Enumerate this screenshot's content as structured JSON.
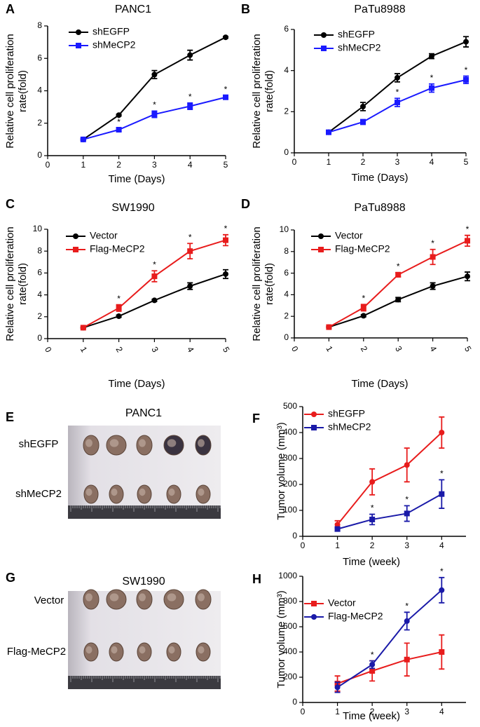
{
  "chart_data": [
    {
      "type": "line",
      "panel": "A",
      "title": "PANC1",
      "x_label": "Time (Days)",
      "y_label": [
        "Relative cell proliferation",
        "rate(fold)"
      ],
      "x": [
        1,
        2,
        3,
        4,
        5
      ],
      "xlim": [
        0,
        5
      ],
      "xticks": [
        0,
        1,
        2,
        3,
        4,
        5
      ],
      "ylim": [
        0,
        8
      ],
      "yticks": [
        0,
        2,
        4,
        6,
        8
      ],
      "legend": "upper left",
      "series": [
        {
          "name": "shEGFP",
          "color": "#000000",
          "marker": "circle",
          "values": [
            1,
            2.5,
            5.0,
            6.2,
            7.3
          ],
          "errors": [
            0.05,
            0.05,
            0.25,
            0.3,
            0.05
          ]
        },
        {
          "name": "shMeCP2",
          "color": "#1a1aff",
          "marker": "square",
          "values": [
            1,
            1.6,
            2.55,
            3.05,
            3.6
          ],
          "errors": [
            0.05,
            0.1,
            0.2,
            0.2,
            0.1
          ],
          "significance": [
            null,
            "*",
            "*",
            "*",
            "*"
          ]
        }
      ]
    },
    {
      "type": "line",
      "panel": "B",
      "title": "PaTu8988",
      "x_label": "Time (Days)",
      "y_label": [
        "Relative cell proliferation",
        "rate(fold)"
      ],
      "x": [
        1,
        2,
        3,
        4,
        5
      ],
      "xlim": [
        0,
        5
      ],
      "xticks": [
        0,
        1,
        2,
        3,
        4,
        5
      ],
      "ylim": [
        0,
        6
      ],
      "yticks": [
        0,
        2,
        4,
        6
      ],
      "legend": "upper left",
      "series": [
        {
          "name": "shEGFP",
          "color": "#000000",
          "marker": "circle",
          "values": [
            1,
            2.25,
            3.65,
            4.7,
            5.4
          ],
          "errors": [
            0.05,
            0.2,
            0.2,
            0.12,
            0.25
          ]
        },
        {
          "name": "shMeCP2",
          "color": "#1a1aff",
          "marker": "square",
          "values": [
            1,
            1.5,
            2.45,
            3.15,
            3.55
          ],
          "errors": [
            0.05,
            0.12,
            0.2,
            0.2,
            0.18
          ],
          "significance": [
            null,
            null,
            "*",
            "*",
            "*"
          ]
        }
      ]
    },
    {
      "type": "line",
      "panel": "C",
      "title": "SW1990",
      "x_label": "Time (Days)",
      "y_label": [
        "Relative cell proliferation",
        "rate(fold)"
      ],
      "x": [
        1,
        2,
        3,
        4,
        5
      ],
      "xlim": [
        0,
        5
      ],
      "xticks": [
        0,
        1,
        2,
        3,
        4,
        5
      ],
      "ylim": [
        0,
        10
      ],
      "yticks": [
        0,
        2,
        4,
        6,
        8,
        10
      ],
      "legend": "upper left",
      "series": [
        {
          "name": "Vector",
          "color": "#000000",
          "marker": "circle",
          "values": [
            1,
            2.05,
            3.5,
            4.8,
            5.9
          ],
          "errors": [
            0.05,
            0.1,
            0.1,
            0.3,
            0.4
          ]
        },
        {
          "name": "Flag-MeCP2",
          "color": "#e81c1c",
          "marker": "square",
          "values": [
            1,
            2.8,
            5.7,
            8.0,
            9.0
          ],
          "errors": [
            0.05,
            0.3,
            0.5,
            0.7,
            0.5
          ],
          "significance": [
            null,
            "*",
            "*",
            "*",
            "*"
          ]
        }
      ]
    },
    {
      "type": "line",
      "panel": "D",
      "title": "PaTu8988",
      "x_label": "Time (Days)",
      "y_label": [
        "Relative cell proliferation",
        "rate(fold)"
      ],
      "x": [
        1,
        2,
        3,
        4,
        5
      ],
      "xlim": [
        0,
        5
      ],
      "xticks": [
        0,
        1,
        2,
        3,
        4,
        5
      ],
      "ylim": [
        0,
        10
      ],
      "yticks": [
        0,
        2,
        4,
        6,
        8,
        10
      ],
      "legend": "upper left",
      "series": [
        {
          "name": "Vector",
          "color": "#000000",
          "marker": "circle",
          "values": [
            1,
            2.05,
            3.55,
            4.8,
            5.7
          ],
          "errors": [
            0.05,
            0.1,
            0.2,
            0.3,
            0.4
          ]
        },
        {
          "name": "Flag-MeCP2",
          "color": "#e81c1c",
          "marker": "square",
          "values": [
            1,
            2.8,
            5.85,
            7.5,
            9.0
          ],
          "errors": [
            0.05,
            0.3,
            0.2,
            0.7,
            0.5
          ],
          "significance": [
            null,
            "*",
            "*",
            "*",
            "*"
          ]
        }
      ]
    },
    {
      "type": "line",
      "panel": "F",
      "x_label": "Time (week)",
      "y_label": [
        "Tumor volume (mm³)"
      ],
      "x": [
        1,
        2,
        3,
        4
      ],
      "xlim": [
        0,
        4.7
      ],
      "xticks": [
        0,
        1,
        2,
        3,
        4
      ],
      "ylim": [
        0,
        500
      ],
      "yticks": [
        0,
        100,
        200,
        300,
        400,
        500
      ],
      "legend": "upper left",
      "series": [
        {
          "name": "shEGFP",
          "color": "#e81c1c",
          "marker": "circle",
          "values": [
            45,
            210,
            275,
            400
          ],
          "errors": [
            15,
            50,
            65,
            60
          ]
        },
        {
          "name": "shMeCP2",
          "color": "#1a1aa8",
          "marker": "square",
          "values": [
            28,
            65,
            88,
            163
          ],
          "errors": [
            8,
            20,
            30,
            55
          ],
          "significance": [
            null,
            "*",
            "*",
            "*"
          ]
        }
      ]
    },
    {
      "type": "line",
      "panel": "H",
      "x_label": "Time (week)",
      "y_label": [
        "Tumor volume (mm³)"
      ],
      "x": [
        1,
        2,
        3,
        4
      ],
      "xlim": [
        0,
        4.7
      ],
      "xticks": [
        0,
        1,
        2,
        3,
        4
      ],
      "ylim": [
        0,
        1000
      ],
      "yticks": [
        0,
        200,
        400,
        600,
        800,
        1000
      ],
      "legend": "upper left",
      "series": [
        {
          "name": "Vector",
          "color": "#e81c1c",
          "marker": "square",
          "values": [
            150,
            250,
            340,
            400
          ],
          "errors": [
            60,
            80,
            130,
            135
          ]
        },
        {
          "name": "Flag-MeCP2",
          "color": "#1a1aa8",
          "marker": "circle",
          "values": [
            120,
            300,
            645,
            890
          ],
          "errors": [
            40,
            30,
            70,
            100
          ],
          "significance": [
            null,
            "*",
            "*",
            "*"
          ]
        }
      ]
    }
  ],
  "photos": [
    {
      "panel": "E",
      "title": "PANC1",
      "rows": [
        "shEGFP",
        "shMeCP2"
      ]
    },
    {
      "panel": "G",
      "title": "SW1990",
      "rows": [
        "Vector",
        "Flag-MeCP2"
      ]
    }
  ]
}
